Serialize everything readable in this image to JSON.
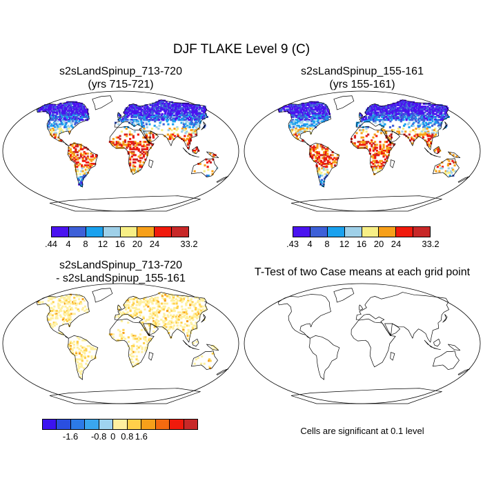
{
  "title": "DJF TLAKE Level 9 (C)",
  "panels": [
    {
      "title_line1": "s2sLandSpinup_713-720",
      "title_line2": "(yrs 715-721)",
      "colorbar": {
        "colors": [
          "#4a13f0",
          "#3d60d8",
          "#1aa1ee",
          "#9fd0e8",
          "#f7ef86",
          "#f7a01a",
          "#f01a0c",
          "#c82828"
        ],
        "labels": [
          ".44",
          "4",
          "8",
          "12",
          "16",
          "20",
          "24",
          "33.2"
        ]
      }
    },
    {
      "title_line1": "s2sLandSpinup_155-161",
      "title_line2": "(yrs 155-161)",
      "colorbar": {
        "colors": [
          "#4a13f0",
          "#3d60d8",
          "#1aa1ee",
          "#9fd0e8",
          "#f7ef86",
          "#f7a01a",
          "#f01a0c",
          "#c82828"
        ],
        "labels": [
          ".43",
          "4",
          "8",
          "12",
          "16",
          "20",
          "24",
          "33.2"
        ]
      }
    },
    {
      "title_line1": "s2sLandSpinup_713-720",
      "title_line2": "- s2sLandSpinup_155-161",
      "colorbar": {
        "colors": [
          "#3b13f0",
          "#2a4fe0",
          "#2c7ae8",
          "#3aa6ef",
          "#9fd3f0",
          "#fff0a0",
          "#ffd04a",
          "#f7a01a",
          "#f46a10",
          "#f01a0c",
          "#c82828"
        ],
        "labels": [
          "-1.6",
          "-0.8",
          "0",
          "0.8",
          "1.6"
        ]
      }
    },
    {
      "title_line1": "T-Test of two Case means at each grid point",
      "note": "Cells are significant at 0.1 level"
    }
  ]
}
